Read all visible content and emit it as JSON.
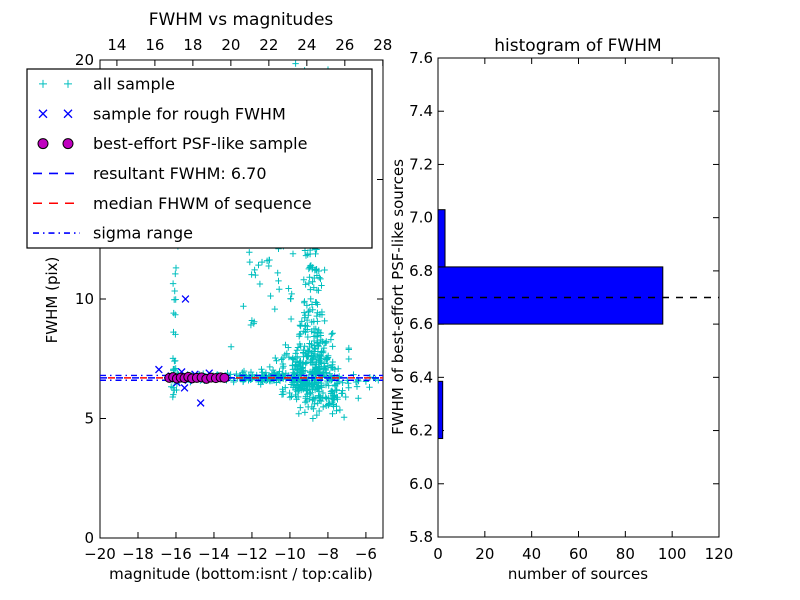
{
  "colors": {
    "background": "#ffffff",
    "cyan_marker": "#00bfbf",
    "blue": "#0000ff",
    "magenta": "#bf00bf",
    "red": "#ff0000",
    "black": "#000000",
    "bar_fill": "#0000ff"
  },
  "chart_data": [
    {
      "id": "fwhm_vs_mag",
      "type": "scatter",
      "title": "FWHM vs magnitudes",
      "xlabel": "magnitude (bottom:isnt / top:calib)",
      "ylabel": "FWHM (pix)",
      "xlim": [
        -20,
        -5.1
      ],
      "ylim": [
        0,
        20
      ],
      "grid": false,
      "x_ticks_bottom": {
        "values": [
          -20,
          -18,
          -16,
          -14,
          -12,
          -10,
          -8,
          -6
        ],
        "labels": [
          "−20",
          "−18",
          "−16",
          "−14",
          "−12",
          "−10",
          "−8",
          "−6"
        ]
      },
      "x_ticks_top": {
        "calib_offset": 33.11,
        "values": [
          14,
          16,
          18,
          20,
          22,
          24,
          26,
          28
        ],
        "labels": [
          "14",
          "16",
          "18",
          "20",
          "22",
          "24",
          "26",
          "28"
        ]
      },
      "y_ticks": {
        "values": [
          0,
          5,
          10,
          15,
          20
        ],
        "labels": [
          "0",
          "5",
          "10",
          "15",
          "20"
        ]
      },
      "hlines": [
        {
          "name": "resultant-fwhm-line",
          "y": 6.7,
          "style": "dashed",
          "color": "#0000ff",
          "dashoffset": 0
        },
        {
          "name": "median-fwhm-line",
          "y": 6.7,
          "style": "dashed",
          "color": "#ff0000",
          "dashoffset": 8
        },
        {
          "name": "sigma-range-upper",
          "y": 6.8,
          "style": "dashdot",
          "color": "#0000ff",
          "dashoffset": 0
        },
        {
          "name": "sigma-range-lower",
          "y": 6.6,
          "style": "dashdot",
          "color": "#0000ff",
          "dashoffset": 0
        }
      ],
      "series": {
        "all_sample": {
          "label": "all sample",
          "marker": "plus",
          "color": "#00bfbf",
          "clusters": [
            {
              "count": 16,
              "m": {
                "dist": "gauss",
                "mu": -16.12,
                "sigma": 0.07
              },
              "f": {
                "dist": "gauss",
                "mu": 6.9,
                "sigma": 0.5,
                "clip": [
                  5.9,
                  8.4
                ]
              }
            },
            {
              "count": 10,
              "m": {
                "dist": "gauss",
                "mu": -16.1,
                "sigma": 0.09
              },
              "f": {
                "dist": "uniform",
                "lo": 8.2,
                "hi": 12.3
              }
            },
            {
              "count": 55,
              "m": {
                "dist": "uniform",
                "lo": -16.45,
                "hi": -12.6
              },
              "f": {
                "dist": "gauss",
                "mu": 6.72,
                "sigma": 0.09
              }
            },
            {
              "count": 90,
              "m": {
                "dist": "uniform",
                "lo": -12.6,
                "hi": -10.3
              },
              "f": {
                "dist": "gauss",
                "mu": 6.72,
                "sigma": 0.13
              }
            },
            {
              "count": 330,
              "m": {
                "dist": "gauss",
                "mu": -9.1,
                "sigma": 0.85,
                "clip": [
                  -11.9,
                  -6.9
                ]
              },
              "f": {
                "dist": "gauss",
                "mu": 6.85,
                "sigma": 0.6,
                "clip": [
                  5.2,
                  9.2
                ]
              }
            },
            {
              "count": 50,
              "m": {
                "dist": "gauss",
                "mu": -8.2,
                "sigma": 0.6,
                "clip": [
                  -9.6,
                  -6.8
                ]
              },
              "f": {
                "dist": "gauss",
                "mu": 5.8,
                "sigma": 0.35,
                "clip": [
                  4.9,
                  6.4
                ]
              }
            },
            {
              "count": 70,
              "m": {
                "dist": "gauss",
                "mu": -8.85,
                "sigma": 0.5
              },
              "f": {
                "dist": "uniform",
                "lo": 7.4,
                "hi": 9.5
              }
            },
            {
              "count": 80,
              "m": {
                "dist": "gauss",
                "mu": -8.8,
                "sigma": 0.33
              },
              "f": {
                "dist": "uniform",
                "lo": 9.5,
                "hi": 14.0
              }
            },
            {
              "count": 30,
              "m": {
                "dist": "gauss",
                "mu": -8.8,
                "sigma": 0.4
              },
              "f": {
                "dist": "uniform",
                "lo": 14.0,
                "hi": 19.8
              }
            },
            {
              "count": 26,
              "m": {
                "dist": "uniform",
                "lo": -12.4,
                "hi": -9.9
              },
              "f": {
                "dist": "uniform",
                "lo": 8.8,
                "hi": 12.4
              }
            },
            {
              "count": 10,
              "m": {
                "dist": "uniform",
                "lo": -7.0,
                "hi": -5.4
              },
              "f": {
                "dist": "gauss",
                "mu": 6.6,
                "sigma": 0.3
              }
            }
          ],
          "points": [
            [
              -9.7,
              19.85
            ],
            [
              -9.55,
              19.4
            ],
            [
              -15.9,
              12.2
            ],
            [
              -16.0,
              11.3
            ],
            [
              -7.15,
              5.05
            ],
            [
              -7.7,
              5.5
            ],
            [
              -6.4,
              5.85
            ],
            [
              -12.0,
              9.1
            ],
            [
              -12.45,
              9.7
            ],
            [
              -13.1,
              8.0
            ],
            [
              -10.6,
              12.1
            ],
            [
              -11.2,
              11.6
            ],
            [
              -6.0,
              6.55
            ],
            [
              -5.6,
              6.7
            ],
            [
              -5.35,
              6.6
            ]
          ]
        },
        "rough_fwhm": {
          "label": "sample for rough FWHM",
          "marker": "x",
          "color": "#0000ff",
          "points": [
            [
              -15.5,
              10.0
            ],
            [
              -16.9,
              7.05
            ],
            [
              -14.7,
              5.65
            ],
            [
              -16.25,
              6.78
            ],
            [
              -15.95,
              6.5
            ],
            [
              -15.7,
              6.95
            ],
            [
              -15.35,
              6.6
            ],
            [
              -15.0,
              6.85
            ],
            [
              -14.6,
              6.7
            ],
            [
              -14.25,
              6.9
            ],
            [
              -13.9,
              6.72
            ],
            [
              -15.55,
              6.28
            ]
          ]
        },
        "psf_like": {
          "label": "best-effort PSF-like sample",
          "marker": "circle",
          "color": "#bf00bf",
          "edge_color": "#000000",
          "points": [
            [
              -16.35,
              6.7
            ],
            [
              -16.15,
              6.73
            ],
            [
              -15.95,
              6.67
            ],
            [
              -15.75,
              6.71
            ],
            [
              -15.55,
              6.69
            ],
            [
              -15.35,
              6.74
            ],
            [
              -15.15,
              6.68
            ],
            [
              -14.9,
              6.7
            ],
            [
              -14.65,
              6.72
            ],
            [
              -14.4,
              6.66
            ],
            [
              -14.15,
              6.71
            ],
            [
              -13.9,
              6.69
            ],
            [
              -13.65,
              6.72
            ],
            [
              -13.45,
              6.7
            ]
          ]
        }
      },
      "legend": {
        "position": "upper left",
        "entries": [
          {
            "label": "all sample",
            "marker": "plus",
            "color": "#00bfbf"
          },
          {
            "label": "sample for rough FWHM",
            "marker": "x",
            "color": "#0000ff"
          },
          {
            "label": "best-effort PSF-like sample",
            "marker": "circle",
            "color": "#bf00bf"
          },
          {
            "label": "resultant FWHM: 6.70",
            "marker": "line-dashed",
            "color": "#0000ff"
          },
          {
            "label": "median FHWM of sequence",
            "marker": "line-dashed",
            "color": "#ff0000"
          },
          {
            "label": "sigma range",
            "marker": "line-dashdot",
            "color": "#0000ff"
          }
        ]
      }
    },
    {
      "id": "fwhm_hist",
      "type": "bar",
      "orientation": "horizontal",
      "title": "histogram of FWHM",
      "xlabel": "number of sources",
      "ylabel": "FWHM of best-effort PSF-like sources",
      "xlim": [
        0,
        120
      ],
      "ylim": [
        5.8,
        7.6
      ],
      "grid": false,
      "x_ticks": {
        "values": [
          0,
          20,
          40,
          60,
          80,
          100,
          120
        ],
        "labels": [
          "0",
          "20",
          "40",
          "60",
          "80",
          "100",
          "120"
        ]
      },
      "y_ticks": {
        "values": [
          5.8,
          6.0,
          6.2,
          6.4,
          6.6,
          6.8,
          7.0,
          7.2,
          7.4,
          7.6
        ],
        "labels": [
          "5.8",
          "6.0",
          "6.2",
          "6.4",
          "6.6",
          "6.8",
          "7.0",
          "7.2",
          "7.4",
          "7.6"
        ]
      },
      "bar_color": "#0000ff",
      "bar_edge_color": "#000000",
      "bins": [
        {
          "lo": 6.17,
          "hi": 6.385,
          "count": 2
        },
        {
          "lo": 6.385,
          "hi": 6.6,
          "count": 0
        },
        {
          "lo": 6.6,
          "hi": 6.815,
          "count": 96
        },
        {
          "lo": 6.815,
          "hi": 7.03,
          "count": 3
        }
      ],
      "hline": {
        "name": "median-line",
        "y": 6.7,
        "style": "dashed",
        "color": "#000000"
      }
    }
  ]
}
